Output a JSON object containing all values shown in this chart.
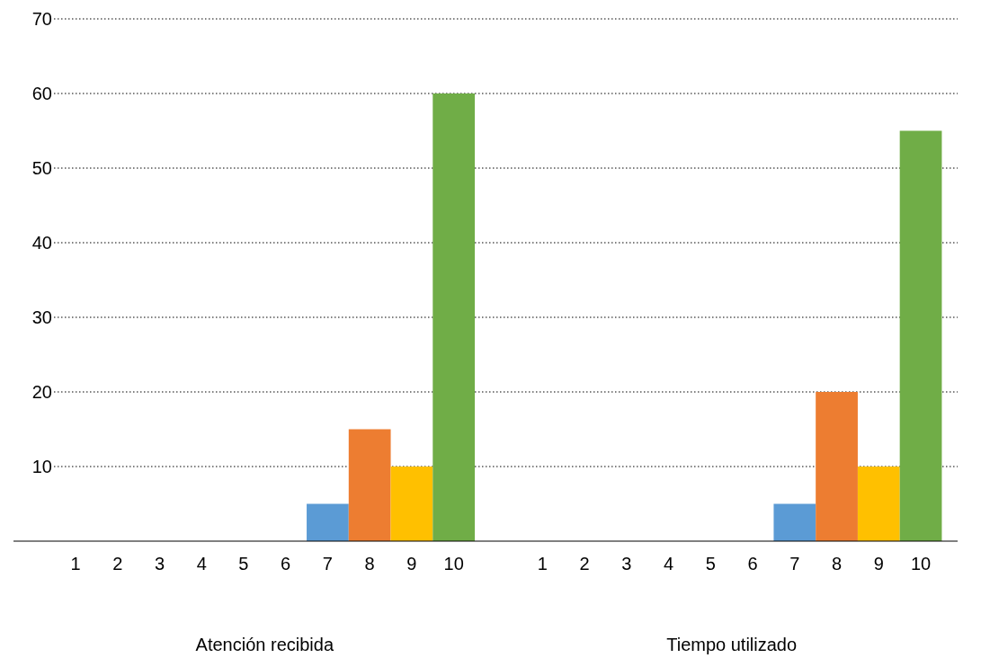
{
  "chart_data": {
    "type": "bar",
    "categories": [
      "Atención recibida",
      "Tiempo utilizado"
    ],
    "series": [
      {
        "name": "1",
        "values": [
          0,
          0
        ]
      },
      {
        "name": "2",
        "values": [
          0,
          0
        ]
      },
      {
        "name": "3",
        "values": [
          0,
          0
        ]
      },
      {
        "name": "4",
        "values": [
          0,
          0
        ]
      },
      {
        "name": "5",
        "values": [
          0,
          0
        ]
      },
      {
        "name": "6",
        "values": [
          0,
          0
        ]
      },
      {
        "name": "7",
        "color": "#5b9bd5",
        "values": [
          5,
          5
        ]
      },
      {
        "name": "8",
        "color": "#ed7d31",
        "values": [
          15,
          20
        ]
      },
      {
        "name": "9",
        "color": "#ffc000",
        "values": [
          10,
          10
        ]
      },
      {
        "name": "10",
        "color": "#70ad47",
        "values": [
          60,
          55
        ]
      }
    ],
    "ylim": [
      0,
      70
    ],
    "yticks": [
      10,
      20,
      30,
      40,
      50,
      60,
      70
    ],
    "grid": "y",
    "legend": false
  }
}
